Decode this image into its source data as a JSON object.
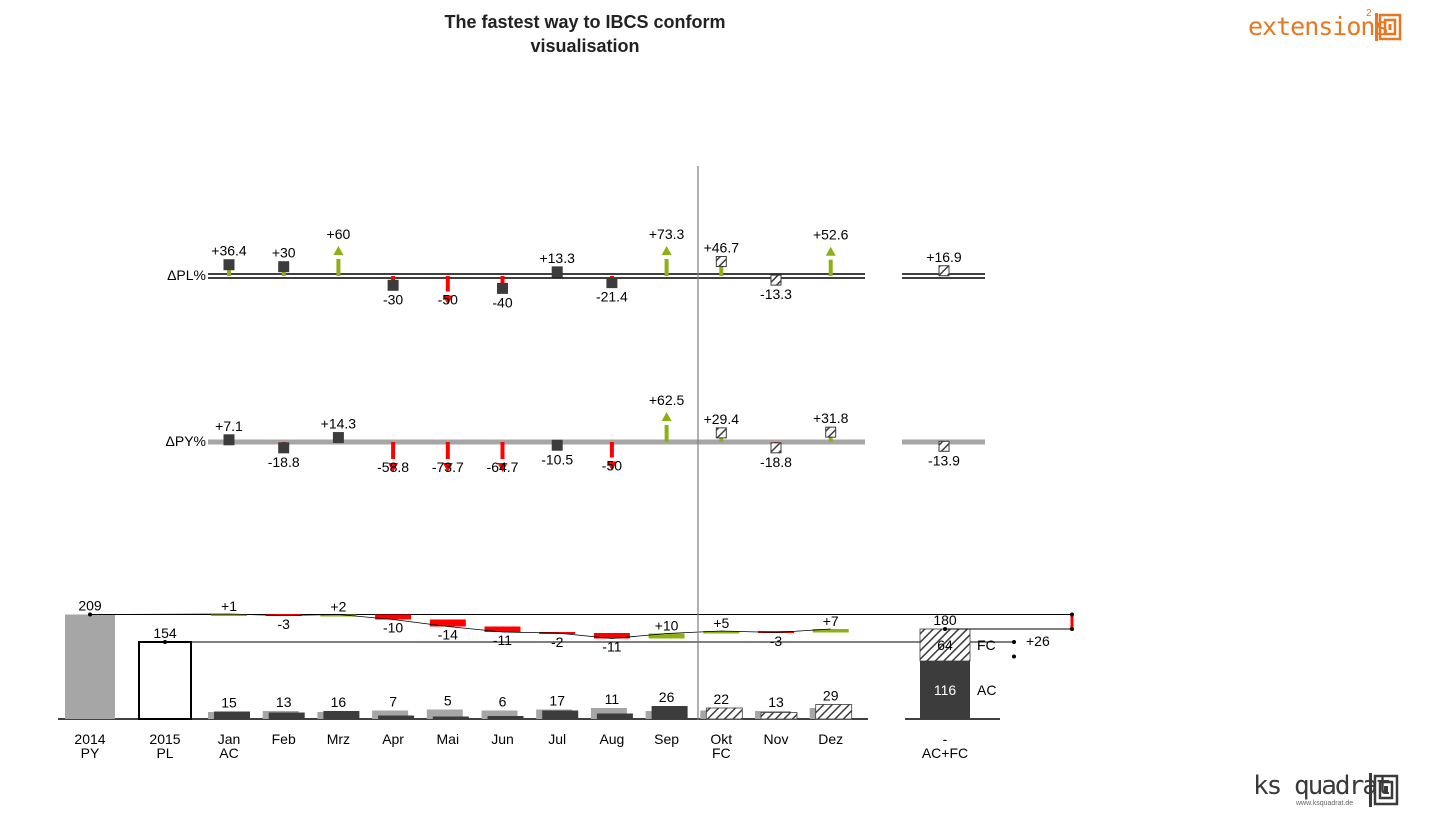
{
  "title": {
    "line1": "The fastest  way to IBCS conform",
    "line2": "visualisation"
  },
  "brand": {
    "top_logo": "extensions",
    "top_sup": "2",
    "bottom_logo": "ks quadrat",
    "bottom_url": "www.ksquadrat.de"
  },
  "colors": {
    "positive": "#8db114",
    "negative": "#ff0000",
    "ac": "#3c3c3c",
    "py": "#a6a6a6",
    "fc_hatch": "#3c3c3c"
  },
  "chart_data": [
    {
      "type": "bar",
      "name_label": "ΔPL%",
      "baseline_style": "double-line",
      "categories": [
        "Jan",
        "Feb",
        "Mrz",
        "Apr",
        "Mai",
        "Jun",
        "Jul",
        "Aug",
        "Sep",
        "Okt",
        "Nov",
        "Dez"
      ],
      "values": [
        36.4,
        30,
        60,
        -30,
        -50,
        -40,
        13.3,
        -21.4,
        73.3,
        46.7,
        -13.3,
        52.6
      ],
      "labels": [
        "+36.4",
        "+30",
        "+60",
        "-30",
        "-50",
        "-40",
        "+13.3",
        "-21.4",
        "+73.3",
        "+46.7",
        "-13.3",
        "+52.6"
      ],
      "clipped_arrows": [
        false,
        false,
        true,
        false,
        true,
        false,
        false,
        false,
        true,
        false,
        false,
        true
      ],
      "forecast_from_index": 9,
      "total": {
        "value": 16.9,
        "label": "+16.9"
      }
    },
    {
      "type": "bar",
      "name_label": "ΔPY%",
      "baseline_style": "grey-line",
      "categories": [
        "Jan",
        "Feb",
        "Mrz",
        "Apr",
        "Mai",
        "Jun",
        "Jul",
        "Aug",
        "Sep",
        "Okt",
        "Nov",
        "Dez"
      ],
      "values": [
        7.1,
        -18.8,
        14.3,
        -58.8,
        -73.7,
        -64.7,
        -10.5,
        -50,
        62.5,
        29.4,
        -18.8,
        31.8
      ],
      "labels": [
        "+7.1",
        "-18.8",
        "+14.3",
        "-58.8",
        "-73.7",
        "-64.7",
        "-10.5",
        "-50",
        "+62.5",
        "+29.4",
        "-18.8",
        "+31.8"
      ],
      "clipped_arrows": [
        false,
        false,
        false,
        true,
        true,
        true,
        false,
        true,
        true,
        false,
        false,
        false
      ],
      "forecast_from_index": 9,
      "total": {
        "value": -13.9,
        "label": "-13.9"
      }
    },
    {
      "type": "waterfall",
      "py": {
        "value": 209,
        "label": "209",
        "tick": [
          "2014",
          "PY"
        ]
      },
      "pl": {
        "value": 154,
        "label": "154",
        "tick": [
          "2015",
          "PL"
        ]
      },
      "months": [
        {
          "tick": [
            "Jan",
            "AC"
          ],
          "value": 15,
          "py": 14,
          "delta": 1,
          "delta_label": "+1",
          "forecast": false
        },
        {
          "tick": [
            "Feb",
            ""
          ],
          "value": 13,
          "py": 16,
          "delta": -3,
          "delta_label": "-3",
          "forecast": false
        },
        {
          "tick": [
            "Mrz",
            ""
          ],
          "value": 16,
          "py": 14,
          "delta": 2,
          "delta_label": "+2",
          "forecast": false
        },
        {
          "tick": [
            "Apr",
            ""
          ],
          "value": 7,
          "py": 17,
          "delta": -10,
          "delta_label": "-10",
          "forecast": false
        },
        {
          "tick": [
            "Mai",
            ""
          ],
          "value": 5,
          "py": 19,
          "delta": -14,
          "delta_label": "-14",
          "forecast": false
        },
        {
          "tick": [
            "Jun",
            ""
          ],
          "value": 6,
          "py": 17,
          "delta": -11,
          "delta_label": "-11",
          "forecast": false
        },
        {
          "tick": [
            "Jul",
            ""
          ],
          "value": 17,
          "py": 19,
          "delta": -2,
          "delta_label": "-2",
          "forecast": false
        },
        {
          "tick": [
            "Aug",
            ""
          ],
          "value": 11,
          "py": 22,
          "delta": -11,
          "delta_label": "-11",
          "forecast": false
        },
        {
          "tick": [
            "Sep",
            ""
          ],
          "value": 26,
          "py": 16,
          "delta": 10,
          "delta_label": "+10",
          "forecast": false
        },
        {
          "tick": [
            "Okt",
            "FC"
          ],
          "value": 22,
          "py": 17,
          "delta": 5,
          "delta_label": "+5",
          "forecast": true
        },
        {
          "tick": [
            "Nov",
            ""
          ],
          "value": 13,
          "py": 16,
          "delta": -3,
          "delta_label": "-3",
          "forecast": true
        },
        {
          "tick": [
            "Dez",
            ""
          ],
          "value": 29,
          "py": 22,
          "delta": 7,
          "delta_label": "+7",
          "forecast": true
        }
      ],
      "total": {
        "tick": [
          "-",
          "AC+FC"
        ],
        "value": 180,
        "label": "180",
        "ac": 116,
        "ac_label": "116",
        "ac_tag": "AC",
        "fc": 64,
        "fc_label": "64",
        "fc_tag": "FC"
      },
      "delta_pl": {
        "value": 26,
        "label": "+26"
      }
    }
  ]
}
